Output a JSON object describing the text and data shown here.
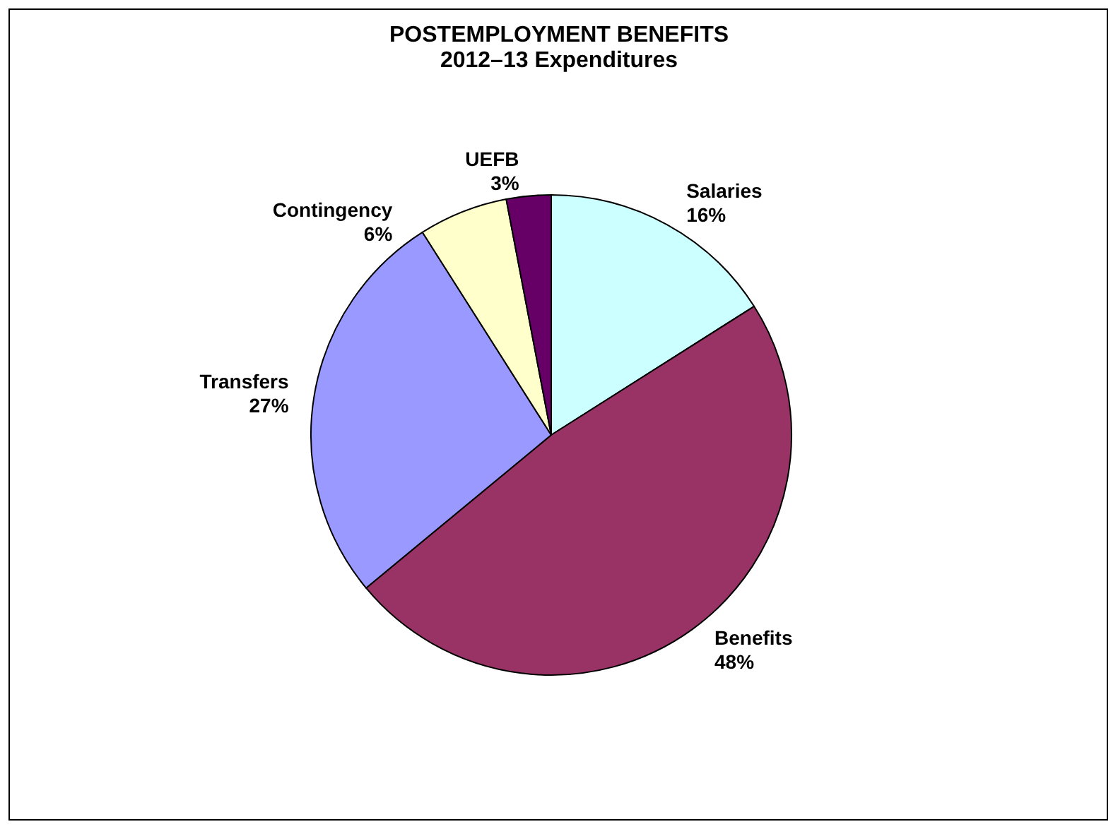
{
  "chart_data": {
    "type": "pie",
    "title": "POSTEMPLOYMENT BENEFITS",
    "subtitle": "2012–13 Expenditures",
    "categories": [
      "Salaries",
      "Benefits",
      "Transfers",
      "Contingency",
      "UEFB"
    ],
    "values": [
      16,
      48,
      27,
      6,
      3
    ],
    "colors": [
      "#ccffff",
      "#993366",
      "#9999ff",
      "#ffffcc",
      "#660066"
    ],
    "value_labels": [
      "16%",
      "48%",
      "27%",
      "6%",
      "3%"
    ]
  }
}
